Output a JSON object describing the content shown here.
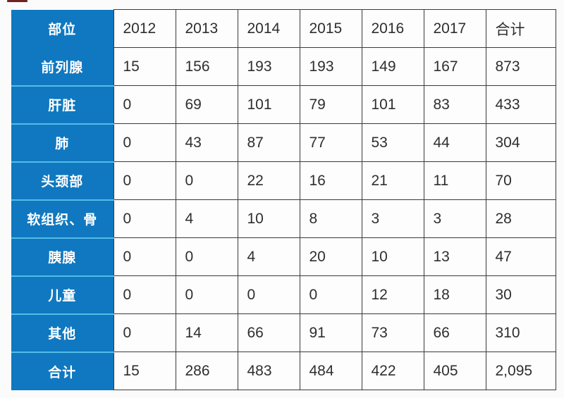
{
  "chart_data": {
    "type": "table",
    "header": {
      "corner_label": "部位",
      "columns": [
        "2012",
        "2013",
        "2014",
        "2015",
        "2016",
        "2017",
        "合计"
      ]
    },
    "rows": [
      {
        "label": "前列腺",
        "values": [
          "15",
          "156",
          "193",
          "193",
          "149",
          "167",
          "873"
        ]
      },
      {
        "label": "肝脏",
        "values": [
          "0",
          "69",
          "101",
          "79",
          "101",
          "83",
          "433"
        ]
      },
      {
        "label": "肺",
        "values": [
          "0",
          "43",
          "87",
          "77",
          "53",
          "44",
          "304"
        ]
      },
      {
        "label": "头颈部",
        "values": [
          "0",
          "0",
          "22",
          "16",
          "21",
          "11",
          "70"
        ]
      },
      {
        "label": "软组织、骨",
        "values": [
          "0",
          "4",
          "10",
          "8",
          "3",
          "3",
          "28"
        ]
      },
      {
        "label": "胰腺",
        "values": [
          "0",
          "0",
          "4",
          "20",
          "10",
          "13",
          "47"
        ]
      },
      {
        "label": "儿童",
        "values": [
          "0",
          "0",
          "0",
          "0",
          "12",
          "18",
          "30"
        ]
      },
      {
        "label": "其他",
        "values": [
          "0",
          "14",
          "66",
          "91",
          "73",
          "66",
          "310"
        ]
      },
      {
        "label": "合计",
        "values": [
          "15",
          "286",
          "483",
          "484",
          "422",
          "405",
          "2,095"
        ]
      }
    ]
  },
  "colors": {
    "header_blue": "#0F78C0",
    "row_separator": "#54BCE8",
    "cell_border": "#3A3A3A",
    "cell_background": "#FDFDFD",
    "page_background": "#FBFBFB",
    "value_text": "#2E2E2E",
    "label_text": "#FFFFFF",
    "crop_artifact": "#6E2323"
  }
}
